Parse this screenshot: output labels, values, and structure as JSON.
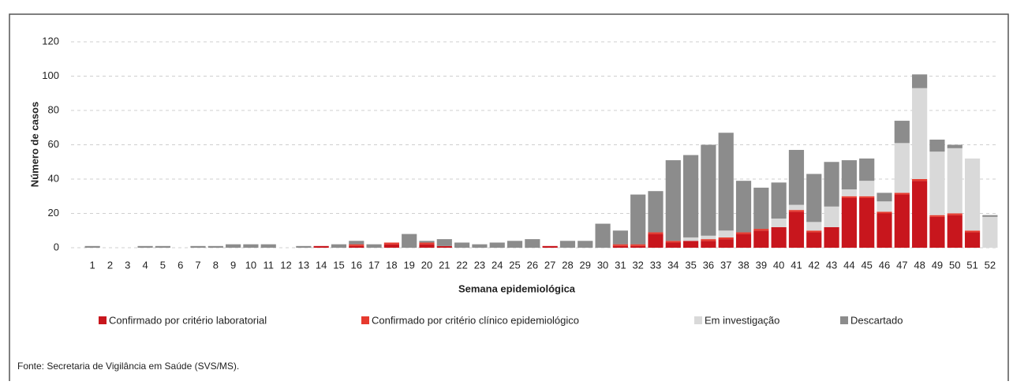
{
  "chart_data": {
    "type": "stacked_bar",
    "y_label": "Número de casos",
    "x_label": "Semana epidemiológica",
    "source": "Fonte: Secretaria de Vigilância em Saúde (SVS/MS).",
    "categories": [
      "1",
      "2",
      "3",
      "4",
      "5",
      "6",
      "7",
      "8",
      "9",
      "10",
      "11",
      "12",
      "13",
      "14",
      "15",
      "16",
      "17",
      "18",
      "19",
      "20",
      "21",
      "22",
      "23",
      "24",
      "25",
      "26",
      "27",
      "28",
      "29",
      "30",
      "31",
      "32",
      "33",
      "34",
      "35",
      "36",
      "37",
      "38",
      "39",
      "40",
      "41",
      "42",
      "43",
      "44",
      "45",
      "46",
      "47",
      "48",
      "49",
      "50",
      "51",
      "52"
    ],
    "series": [
      {
        "name": "Confirmado por critério laboratorial",
        "color": "#c8161d",
        "values": [
          0,
          0,
          0,
          0,
          0,
          0,
          0,
          0,
          0,
          0,
          0,
          0,
          0,
          1,
          0,
          1,
          0,
          2,
          0,
          2,
          1,
          0,
          0,
          0,
          0,
          0,
          1,
          0,
          0,
          0,
          1,
          1,
          8,
          3,
          4,
          4,
          5,
          8,
          10,
          12,
          21,
          9,
          12,
          29,
          29,
          20,
          31,
          39,
          18,
          19,
          9,
          0
        ]
      },
      {
        "name": "Confirmado por critério clínico epidemiológico",
        "color": "#e63a2e",
        "values": [
          0,
          0,
          0,
          0,
          0,
          0,
          0,
          0,
          0,
          0,
          0,
          0,
          0,
          0,
          0,
          1,
          0,
          1,
          0,
          1,
          0,
          0,
          0,
          0,
          0,
          0,
          0,
          0,
          0,
          0,
          1,
          1,
          1,
          1,
          0,
          1,
          1,
          1,
          1,
          0,
          1,
          1,
          0,
          1,
          1,
          1,
          1,
          1,
          1,
          1,
          1,
          0
        ]
      },
      {
        "name": "Em investigação",
        "color": "#d9d9d9",
        "values": [
          0,
          0,
          0,
          0,
          0,
          0,
          0,
          0,
          0,
          0,
          0,
          0,
          0,
          0,
          0,
          0,
          0,
          0,
          0,
          0,
          0,
          0,
          0,
          0,
          0,
          0,
          0,
          0,
          0,
          0,
          0,
          0,
          0,
          0,
          2,
          2,
          4,
          0,
          0,
          5,
          3,
          5,
          12,
          4,
          9,
          6,
          29,
          53,
          37,
          38,
          42,
          18
        ]
      },
      {
        "name": "Descartado",
        "color": "#8c8c8c",
        "values": [
          1,
          0,
          0,
          1,
          1,
          0,
          1,
          1,
          2,
          2,
          2,
          0,
          1,
          0,
          2,
          2,
          2,
          0,
          8,
          1,
          4,
          3,
          2,
          3,
          4,
          5,
          0,
          4,
          4,
          14,
          8,
          29,
          24,
          47,
          48,
          53,
          57,
          30,
          24,
          21,
          32,
          28,
          26,
          17,
          13,
          5,
          13,
          8,
          7,
          2,
          0,
          1
        ]
      }
    ],
    "ylim": [
      0,
      120
    ],
    "yticks": [
      0,
      20,
      40,
      60,
      80,
      100,
      120
    ],
    "grid": true
  }
}
